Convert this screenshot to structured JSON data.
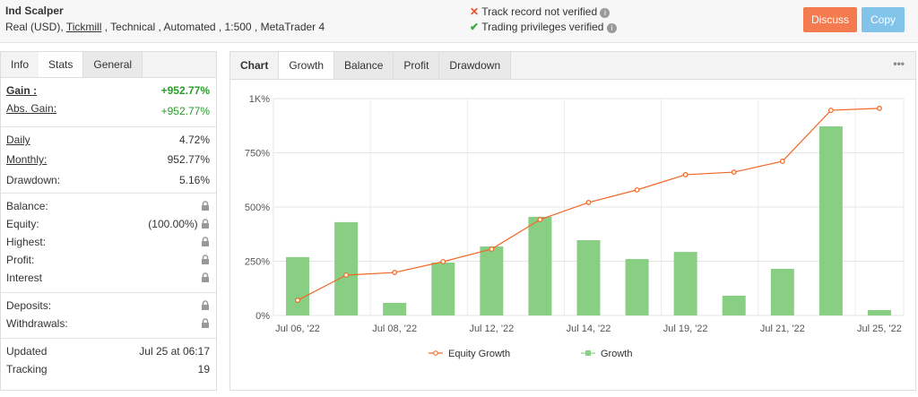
{
  "header": {
    "title": "Ind Scalper",
    "account": [
      "Real (USD),",
      "Tickmill",
      ", Technical , Automated , 1:500 , MetaTrader 4"
    ],
    "status": [
      "Track record not verified",
      "Trading privileges verified"
    ],
    "buttons": [
      "Discuss",
      "Copy"
    ]
  },
  "info_tabs": [
    "Info",
    "Stats",
    "General"
  ],
  "info": {
    "gain": [
      "Gain :",
      "+952.77%"
    ],
    "abs_gain": [
      "Abs. Gain:",
      "+952.77%"
    ],
    "daily": [
      "Daily",
      "4.72%"
    ],
    "monthly": [
      "Monthly:",
      "952.77%"
    ],
    "drawdown": [
      "Drawdown:",
      "5.16%"
    ],
    "balance": [
      "Balance:"
    ],
    "equity": [
      "Equity:",
      "(100.00%)"
    ],
    "highest": [
      "Highest:"
    ],
    "profit": [
      "Profit:"
    ],
    "interest": [
      "Interest"
    ],
    "deposits": [
      "Deposits:"
    ],
    "withdrawals": [
      "Withdrawals:"
    ],
    "updated": [
      "Updated",
      "Jul 25 at 06:17"
    ],
    "tracking": [
      "Tracking",
      "19"
    ]
  },
  "chart_tabs": [
    "Chart",
    "Growth",
    "Balance",
    "Profit",
    "Drawdown"
  ],
  "chart_data": {
    "type": "bar",
    "categories": [
      "Jul 06, '22",
      null,
      "Jul 08, '22",
      null,
      "Jul 12, '22",
      null,
      "Jul 14, '22",
      null,
      "Jul 19, '22",
      null,
      "Jul 21, '22",
      null,
      "Jul 25, '22"
    ],
    "series": [
      {
        "name": "Equity Growth",
        "type": "line",
        "color": "#f26522",
        "values": [
          70,
          186,
          198,
          248,
          306,
          442,
          521,
          579,
          649,
          661,
          711,
          946,
          955
        ]
      },
      {
        "name": "Growth",
        "type": "bar",
        "color": "#88cf84",
        "values": [
          269,
          430,
          58,
          244,
          318,
          455,
          347,
          260,
          293,
          91,
          215,
          872,
          25
        ]
      }
    ],
    "ylim": [
      0,
      1000
    ],
    "yticks": [
      {
        "value": 0,
        "label": "0%"
      },
      {
        "value": 250,
        "label": "250%"
      },
      {
        "value": 500,
        "label": "500%"
      },
      {
        "value": 750,
        "label": "750%"
      },
      {
        "value": 1000,
        "label": "1K%"
      }
    ],
    "grid": true
  }
}
